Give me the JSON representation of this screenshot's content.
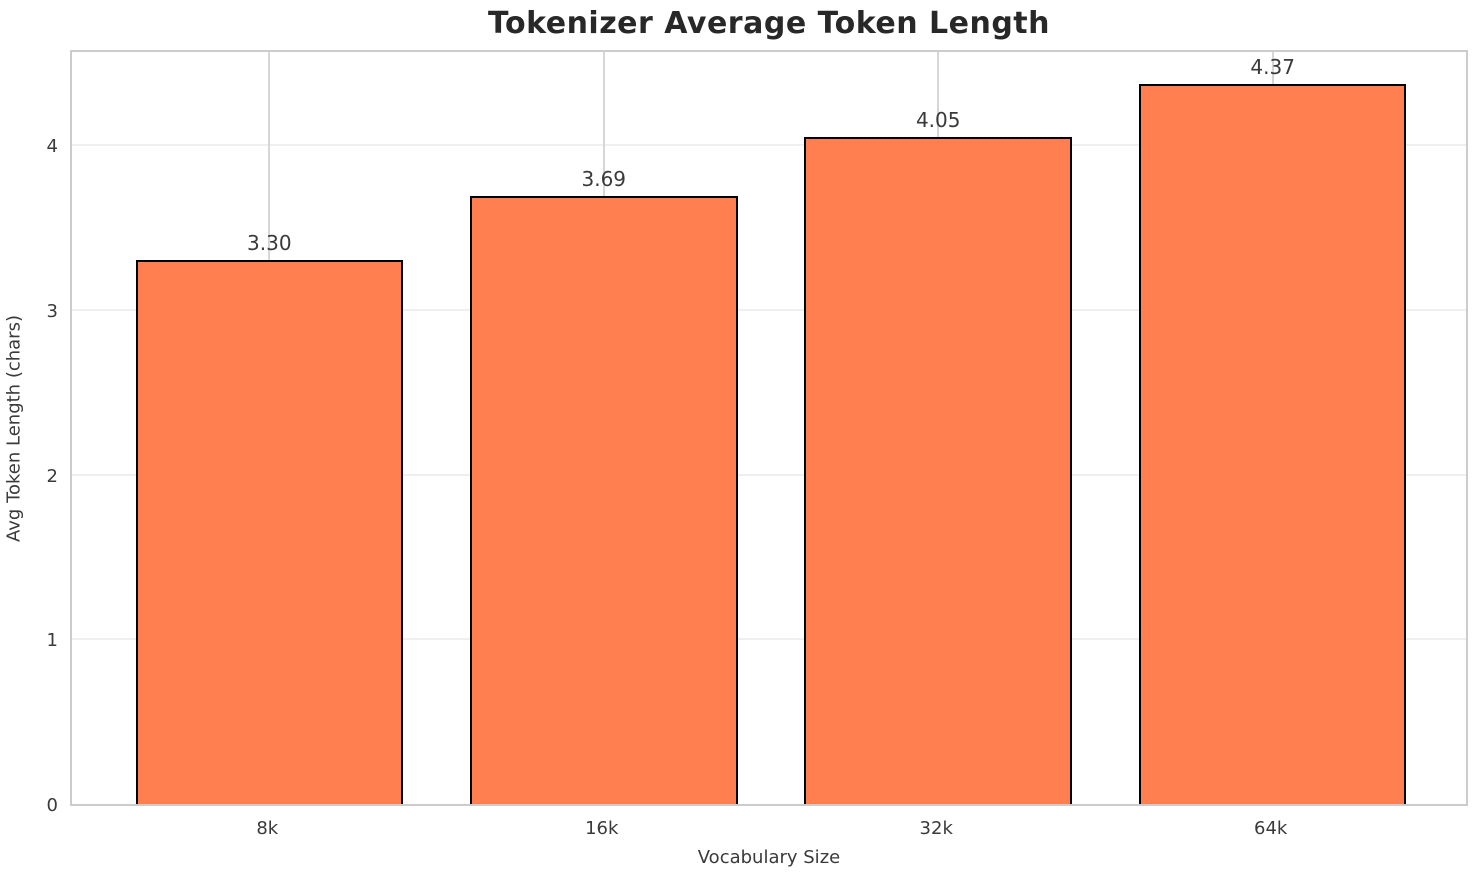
{
  "chart_data": {
    "type": "bar",
    "title": "Tokenizer Average Token Length",
    "categories": [
      "8k",
      "16k",
      "32k",
      "64k"
    ],
    "values": [
      3.3,
      3.69,
      4.05,
      4.37
    ],
    "value_labels": [
      "3.30",
      "3.69",
      "4.05",
      "4.37"
    ],
    "xlabel": "Vocabulary Size",
    "ylabel": "Avg Token Length (chars)",
    "ylim": [
      0,
      4.59
    ],
    "yticks": [
      0,
      1,
      2,
      3,
      4
    ],
    "ytick_labels": [
      "0",
      "1",
      "2",
      "3",
      "4"
    ],
    "bar_color": "#ff7f50",
    "bar_edge_color": "#000000",
    "grid": true,
    "legend": null
  }
}
